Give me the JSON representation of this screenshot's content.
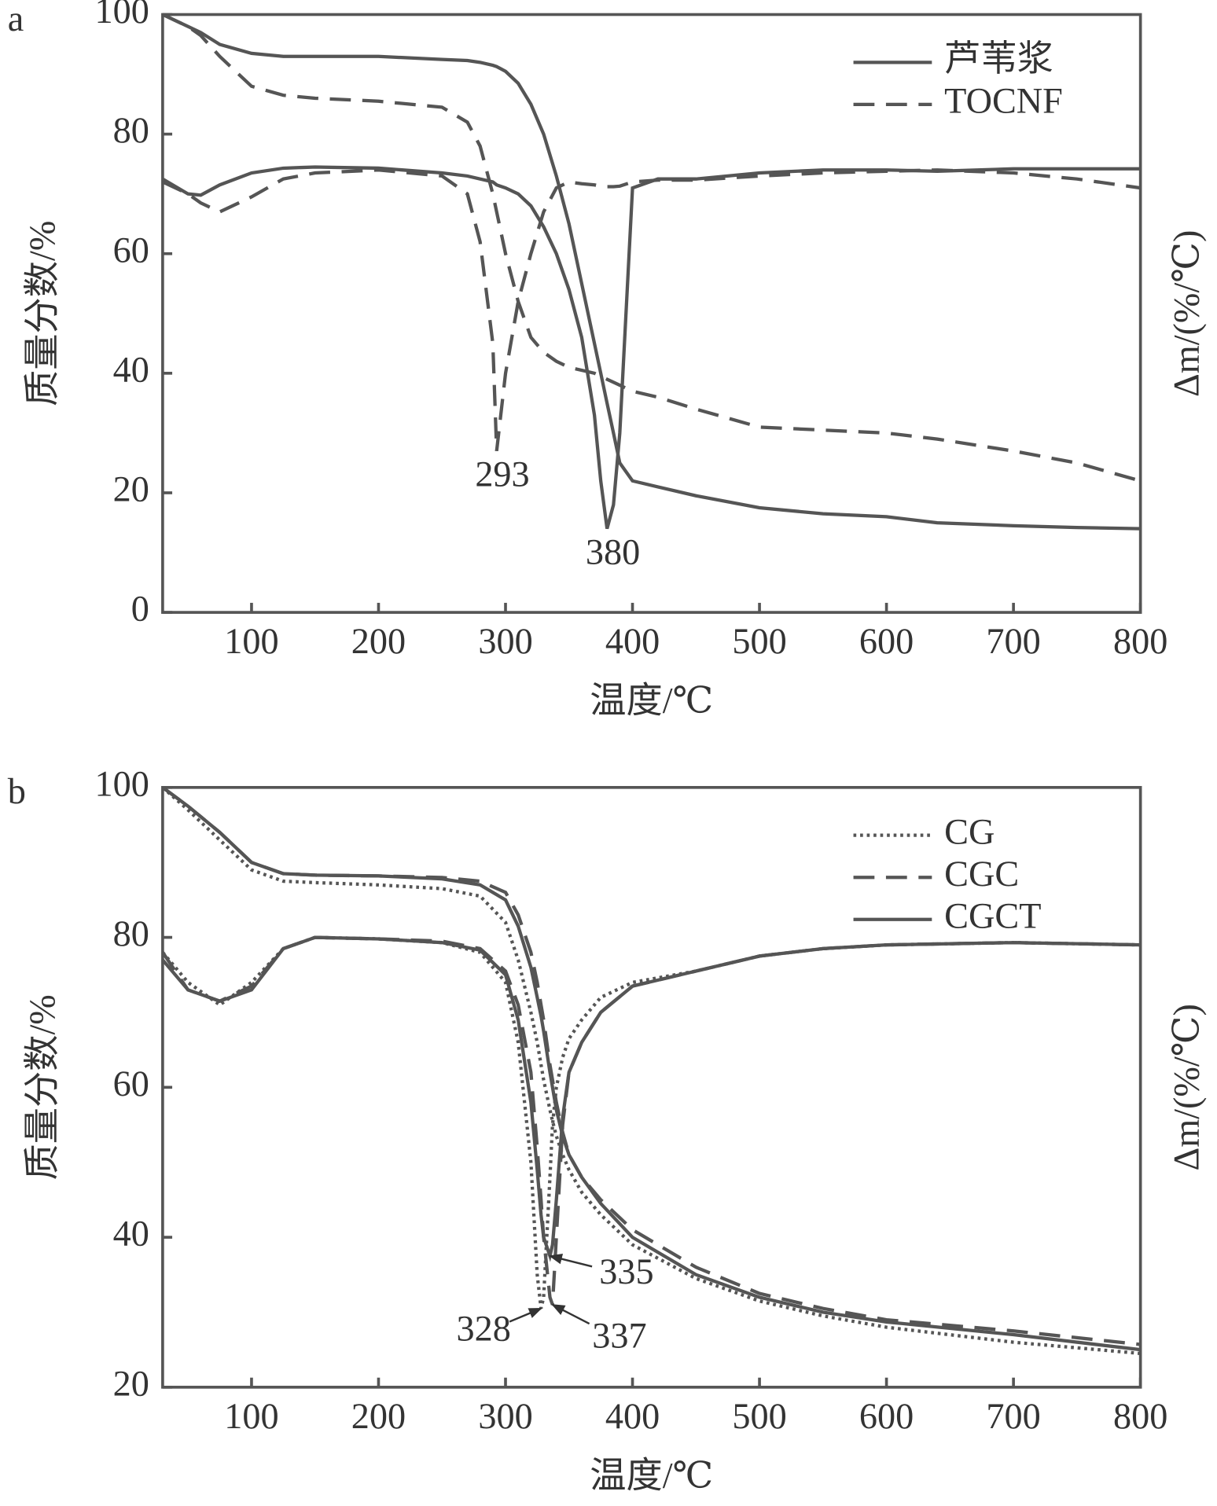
{
  "chart_data": [
    {
      "type": "line",
      "panel_label": "a",
      "xlabel": "温度/℃",
      "ylabel": "质量分数/%",
      "y2label": "Δm/(%/℃)",
      "xlim": [
        30,
        800
      ],
      "xticks": [
        100,
        200,
        300,
        400,
        500,
        600,
        700,
        800
      ],
      "ylim": [
        0,
        100
      ],
      "yticks": [
        0,
        20,
        40,
        60,
        80,
        100
      ],
      "legend": "upper right",
      "x": [
        30,
        50,
        60,
        75,
        100,
        125,
        150,
        200,
        250,
        270,
        280,
        290,
        293,
        300,
        310,
        320,
        330,
        340,
        350,
        360,
        370,
        375,
        380,
        385,
        390,
        400,
        420,
        450,
        500,
        550,
        600,
        640,
        700,
        750,
        800
      ],
      "series": [
        {
          "name": "芦苇浆",
          "color": "#555555",
          "dash": "solid",
          "values": [
            100,
            98,
            97,
            95,
            93.5,
            93,
            93,
            93,
            92.5,
            92.3,
            92,
            91.5,
            91.3,
            90.5,
            88.5,
            85,
            80,
            73,
            65,
            55,
            45,
            40,
            35,
            30,
            25,
            22,
            21,
            19.5,
            17.5,
            16.5,
            16,
            15,
            14.5,
            14.2,
            14
          ]
        },
        {
          "name": "TOCNF",
          "color": "#555555",
          "dash": "dashed",
          "values": [
            100,
            98,
            96.5,
            93,
            88,
            86.5,
            86,
            85.5,
            84.5,
            82,
            78,
            70,
            67,
            60,
            52,
            46,
            43.5,
            42,
            41,
            40.5,
            40,
            39.5,
            39,
            38.5,
            38,
            37,
            36,
            34,
            31,
            30.5,
            30,
            29,
            27,
            25,
            22
          ]
        },
        {
          "color": "#555555",
          "dash": "solid",
          "values": [
            72.5,
            70,
            69.8,
            71.5,
            73.5,
            74.3,
            74.5,
            74.3,
            73.5,
            73,
            72.5,
            72,
            71.5,
            71,
            70,
            68,
            64.5,
            60,
            54,
            46,
            33,
            22,
            14,
            18,
            30,
            71,
            72.5,
            72.5,
            73.5,
            74,
            74,
            73.8,
            74.2,
            74.2,
            74.2
          ]
        },
        {
          "color": "#555555",
          "dash": "dashed",
          "values": [
            72,
            70,
            68.5,
            67,
            69.5,
            72.5,
            73.5,
            74,
            73,
            70,
            62,
            45,
            27,
            40,
            52,
            60,
            67,
            71,
            72,
            71.7,
            71.5,
            71.3,
            71.2,
            71.2,
            71.3,
            72,
            72.3,
            72.3,
            73,
            73.5,
            73.8,
            74,
            73.5,
            72.5,
            71
          ]
        }
      ],
      "annotations": [
        {
          "label": "293",
          "x": 293,
          "y": 27
        },
        {
          "label": "380",
          "x": 380,
          "y": 13
        }
      ]
    },
    {
      "type": "line",
      "panel_label": "b",
      "xlabel": "温度/℃",
      "ylabel": "质量分数/%",
      "y2label": "Δm/(%/℃)",
      "xlim": [
        30,
        800
      ],
      "xticks": [
        100,
        200,
        300,
        400,
        500,
        600,
        700,
        800
      ],
      "ylim": [
        20,
        100
      ],
      "yticks": [
        20,
        40,
        60,
        80,
        100
      ],
      "legend": "upper right",
      "x": [
        30,
        50,
        75,
        100,
        125,
        150,
        200,
        250,
        280,
        300,
        310,
        320,
        325,
        328,
        330,
        335,
        337,
        340,
        345,
        350,
        360,
        375,
        400,
        450,
        500,
        550,
        600,
        700,
        800
      ],
      "series": [
        {
          "name": "CG",
          "color": "#555555",
          "dash": "dotted",
          "values": [
            100,
            97,
            93,
            89,
            87.5,
            87.3,
            87,
            86.5,
            85.5,
            82,
            77,
            70,
            66,
            63,
            61,
            57,
            55.5,
            53.5,
            51,
            49,
            46,
            43,
            39,
            34.5,
            31.5,
            29.5,
            28,
            26,
            24.5
          ]
        },
        {
          "name": "CGC",
          "color": "#555555",
          "dash": "dashed",
          "values": [
            100,
            97.5,
            94,
            90,
            88.5,
            88.3,
            88.2,
            88,
            87.5,
            86,
            83,
            78,
            74,
            71,
            69,
            63,
            61,
            58,
            54,
            51,
            48,
            45,
            41,
            36,
            32.5,
            30.5,
            29,
            27.5,
            25.7
          ]
        },
        {
          "name": "CGCT",
          "color": "#555555",
          "dash": "solid",
          "values": [
            100,
            97.5,
            94,
            90,
            88.5,
            88.3,
            88.2,
            87.8,
            87,
            85,
            81.5,
            76,
            72,
            69.5,
            67.5,
            62,
            60,
            57,
            53.5,
            51,
            48,
            44.5,
            40,
            35,
            32,
            30,
            28.7,
            27,
            25
          ]
        },
        {
          "color": "#555555",
          "dash": "dotted",
          "values": [
            78,
            74,
            71,
            74,
            78.5,
            80,
            79.8,
            79.3,
            78,
            74,
            66,
            50,
            35,
            30.5,
            32,
            48,
            55,
            60,
            64,
            66.5,
            69,
            72,
            74,
            75.5,
            77.5,
            78.5,
            79,
            79.3,
            79
          ]
        },
        {
          "color": "#555555",
          "dash": "dashed",
          "values": [
            78,
            73,
            71.5,
            73.5,
            78.5,
            80,
            79.8,
            79.5,
            78.5,
            75.5,
            71,
            62,
            52,
            45,
            40,
            32,
            31,
            40,
            55,
            62,
            66,
            70,
            73.5,
            75.5,
            77.5,
            78.5,
            79,
            79.3,
            79
          ]
        },
        {
          "color": "#555555",
          "dash": "solid",
          "values": [
            77,
            73,
            71.5,
            73,
            78.5,
            80,
            79.8,
            79.3,
            78.3,
            75,
            69,
            58,
            49,
            43,
            40,
            37.5,
            39,
            45,
            56,
            62,
            66,
            70,
            73.5,
            75.5,
            77.5,
            78.5,
            79,
            79.3,
            79
          ]
        }
      ],
      "annotations": [
        {
          "label": "335",
          "x": 335,
          "y": 37.5
        },
        {
          "label": "328",
          "x": 328,
          "y": 30.5
        },
        {
          "label": "337",
          "x": 337,
          "y": 31
        }
      ]
    }
  ]
}
